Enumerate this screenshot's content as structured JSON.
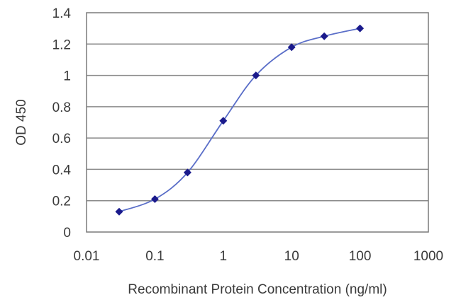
{
  "chart_data": {
    "type": "line",
    "title": "",
    "xlabel": "Recombinant Protein Concentration (ng/ml)",
    "ylabel": "OD 450",
    "xscale": "log",
    "xlim": [
      0.01,
      1000
    ],
    "ylim": [
      0,
      1.4
    ],
    "x_ticks": [
      "0.01",
      "0.1",
      "1",
      "10",
      "100",
      "1000"
    ],
    "y_ticks": [
      "0",
      "0.2",
      "0.4",
      "0.6",
      "0.8",
      "1",
      "1.2",
      "1.4"
    ],
    "grid": "horizontal",
    "legend": "none",
    "series": [
      {
        "x": [
          0.03,
          0.1,
          0.3,
          1,
          3,
          10,
          30,
          100
        ],
        "y": [
          0.13,
          0.21,
          0.38,
          0.71,
          1.0,
          1.18,
          1.25,
          1.3
        ],
        "color": "#1a1a8c",
        "line_color": "#5a6ec8"
      }
    ]
  }
}
